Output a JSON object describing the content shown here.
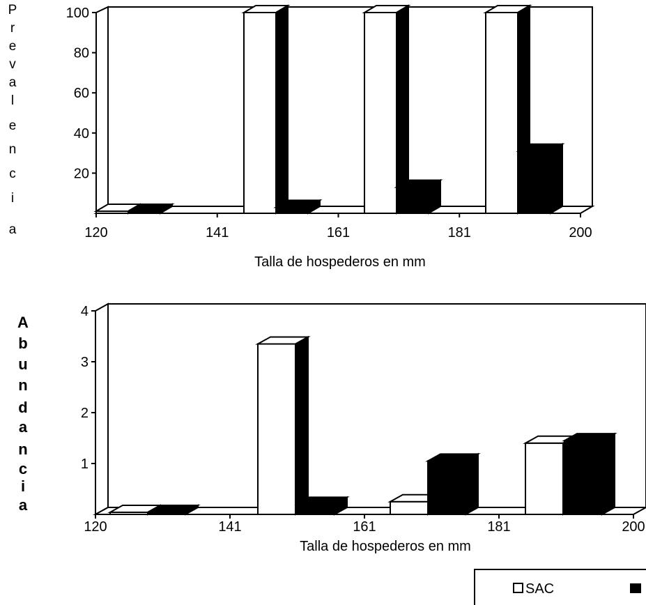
{
  "chart_data": [
    {
      "type": "bar",
      "xlabel": "Talla de hospederos en mm",
      "ylabel": "Prevalencia",
      "x_tick_labels": [
        "120",
        "141",
        "161",
        "181",
        "200"
      ],
      "y_ticks": [
        20,
        40,
        60,
        80,
        100
      ],
      "ylim": [
        0,
        100
      ],
      "series": [
        {
          "name": "SAC",
          "values": [
            0,
            100,
            100,
            100
          ]
        },
        {
          "name": "",
          "values": [
            0,
            3,
            13,
            31
          ]
        }
      ],
      "baseline_values": [
        1,
        1,
        1,
        1
      ]
    },
    {
      "type": "bar",
      "xlabel": "Talla de hospederos en mm",
      "ylabel": "Abundancia",
      "x_tick_labels": [
        "120",
        "141",
        "161",
        "181",
        "200"
      ],
      "y_ticks": [
        1,
        2,
        3,
        4
      ],
      "ylim": [
        0,
        4
      ],
      "series": [
        {
          "name": "SAC",
          "values": [
            0,
            3.35,
            0.25,
            1.4
          ]
        },
        {
          "name": "",
          "values": [
            0,
            0.2,
            1.05,
            1.45
          ]
        }
      ],
      "baseline_values": [
        0,
        0,
        0,
        0
      ]
    }
  ],
  "legend": {
    "items": [
      {
        "label": "SAC",
        "color": "#ffffff"
      },
      {
        "label": "",
        "color": "#000000"
      }
    ]
  }
}
